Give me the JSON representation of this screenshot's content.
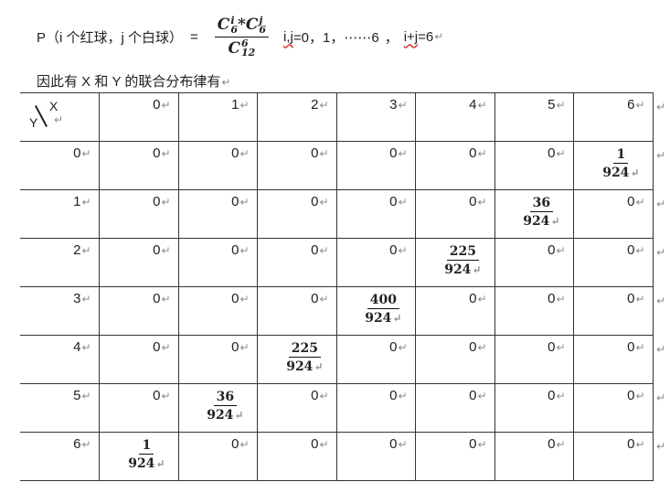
{
  "formula": {
    "lhs": "P（i 个红球，j 个白球）",
    "equals": "=",
    "numerator_left": "C",
    "numerator_left_sup": "i",
    "numerator_left_sub": "6",
    "star": "*",
    "numerator_right": "C",
    "numerator_right_sup": "j",
    "numerator_right_sub": "6",
    "denominator": "C",
    "denominator_sup": "6",
    "denominator_sub": "12",
    "condition_vars": "i,j",
    "condition_range": "=0，1，⋯⋯6",
    "condition_sep": "，",
    "condition_sum": "i+j",
    "condition_sum_value": "=6",
    "return_mark": "↵"
  },
  "caption": "因此有 X 和 Y 的联合分布律有",
  "table": {
    "corner": {
      "x_label": "X",
      "y_label": "Y"
    },
    "columns": [
      "0",
      "1",
      "2",
      "3",
      "4",
      "5",
      "6"
    ],
    "rows": [
      {
        "y": "0",
        "cells": [
          "0",
          "0",
          "0",
          "0",
          "0",
          "0",
          {
            "num": "1",
            "den": "924"
          }
        ]
      },
      {
        "y": "1",
        "cells": [
          "0",
          "0",
          "0",
          "0",
          "0",
          {
            "num": "36",
            "den": "924"
          },
          "0"
        ]
      },
      {
        "y": "2",
        "cells": [
          "0",
          "0",
          "0",
          "0",
          {
            "num": "225",
            "den": "924"
          },
          "0",
          "0"
        ]
      },
      {
        "y": "3",
        "cells": [
          "0",
          "0",
          "0",
          {
            "num": "400",
            "den": "924"
          },
          "0",
          "0",
          "0"
        ]
      },
      {
        "y": "4",
        "cells": [
          "0",
          "0",
          {
            "num": "225",
            "den": "924"
          },
          "0",
          "0",
          "0",
          "0"
        ]
      },
      {
        "y": "5",
        "cells": [
          "0",
          {
            "num": "36",
            "den": "924"
          },
          "0",
          "0",
          "0",
          "0",
          "0"
        ]
      },
      {
        "y": "6",
        "cells": [
          {
            "num": "1",
            "den": "924"
          },
          "0",
          "0",
          "0",
          "0",
          "0",
          "0"
        ]
      }
    ]
  }
}
